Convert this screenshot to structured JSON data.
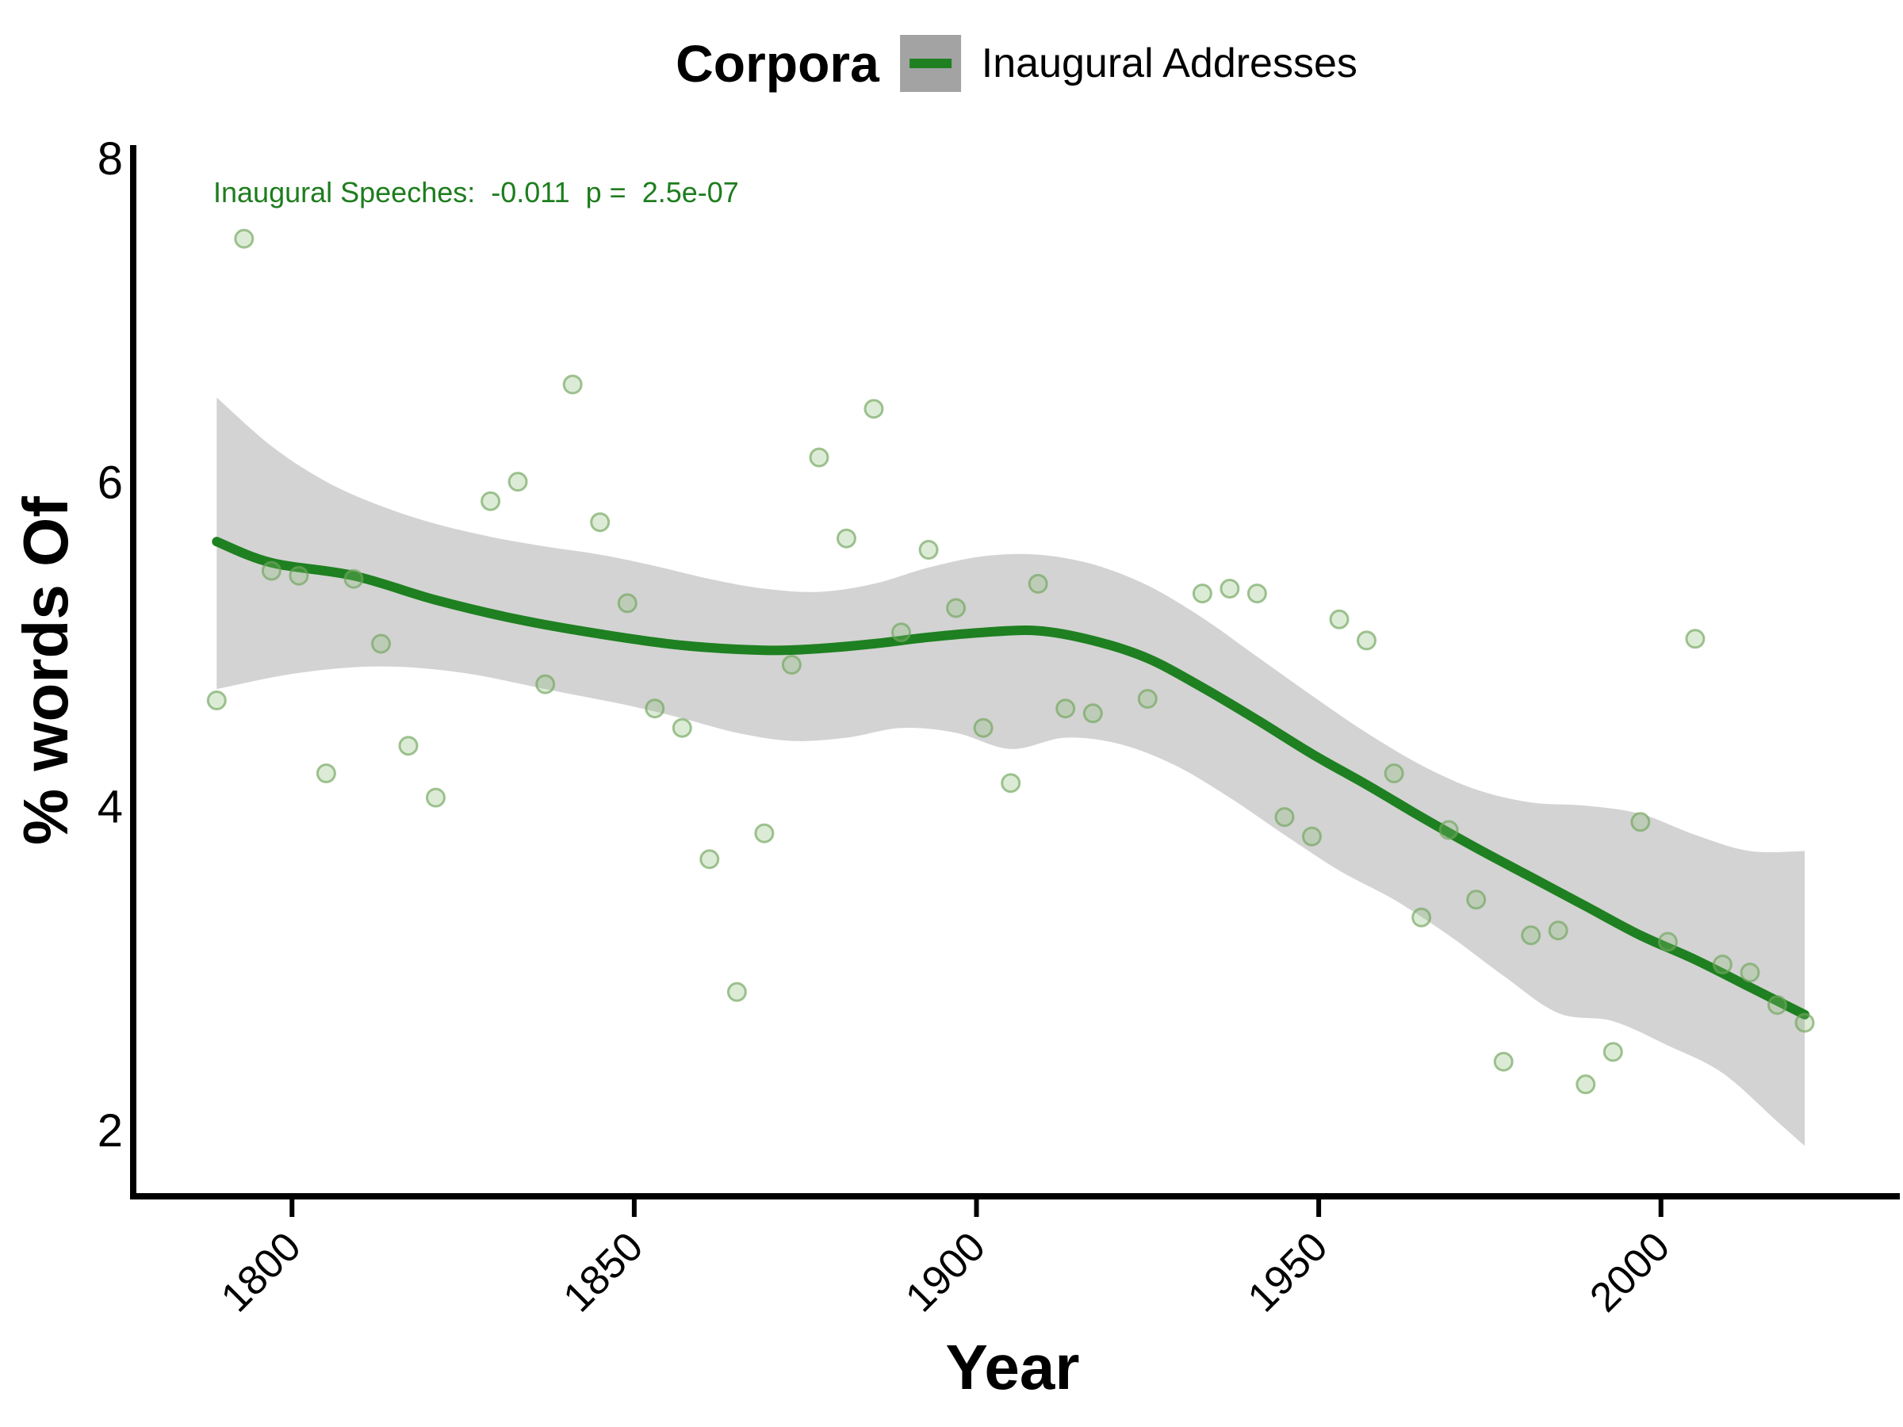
{
  "page": {
    "background": "#ffffff"
  },
  "chart_data": {
    "type": "scatter",
    "legend_title": "Corpora",
    "legend_entries": [
      {
        "label": "Inaugural Addresses"
      }
    ],
    "annotation": "Inaugural Speeches:  -0.011  p =  2.5e-07",
    "xlabel": "Year",
    "ylabel": "% words Of",
    "x_ticks": [
      1800,
      1850,
      1900,
      1950,
      2000
    ],
    "y_ticks": [
      2,
      4,
      6,
      8
    ],
    "xlim": [
      1776.8,
      2034.9
    ],
    "ylim": [
      1.589,
      8.078
    ],
    "grid": "off",
    "legend_position": "top-center",
    "series": [
      {
        "name": "Inaugural Addresses",
        "points": [
          [
            1789,
            4.65
          ],
          [
            1793,
            7.5
          ],
          [
            1797,
            5.45
          ],
          [
            1801,
            5.42
          ],
          [
            1805,
            4.2
          ],
          [
            1809,
            5.4
          ],
          [
            1813,
            5.0
          ],
          [
            1817,
            4.37
          ],
          [
            1821,
            4.05
          ],
          [
            1829,
            5.88
          ],
          [
            1833,
            6.0
          ],
          [
            1837,
            4.75
          ],
          [
            1841,
            6.6
          ],
          [
            1845,
            5.75
          ],
          [
            1849,
            5.25
          ],
          [
            1853,
            4.6
          ],
          [
            1857,
            4.48
          ],
          [
            1861,
            3.67
          ],
          [
            1865,
            2.85
          ],
          [
            1869,
            3.83
          ],
          [
            1873,
            4.87
          ],
          [
            1877,
            6.15
          ],
          [
            1881,
            5.65
          ],
          [
            1885,
            6.45
          ],
          [
            1889,
            5.07
          ],
          [
            1893,
            5.58
          ],
          [
            1897,
            5.22
          ],
          [
            1901,
            4.48
          ],
          [
            1905,
            4.14
          ],
          [
            1909,
            5.37
          ],
          [
            1913,
            4.6
          ],
          [
            1917,
            4.57
          ],
          [
            1925,
            4.66
          ],
          [
            1933,
            5.31
          ],
          [
            1937,
            5.34
          ],
          [
            1941,
            5.31
          ],
          [
            1945,
            3.93
          ],
          [
            1949,
            3.81
          ],
          [
            1953,
            5.15
          ],
          [
            1957,
            5.02
          ],
          [
            1961,
            4.2
          ],
          [
            1965,
            3.31
          ],
          [
            1969,
            3.85
          ],
          [
            1973,
            3.42
          ],
          [
            1977,
            2.42
          ],
          [
            1981,
            3.2
          ],
          [
            1985,
            3.23
          ],
          [
            1989,
            2.28
          ],
          [
            1993,
            2.48
          ],
          [
            1997,
            3.9
          ],
          [
            2001,
            3.16
          ],
          [
            2005,
            5.03
          ],
          [
            2009,
            3.02
          ],
          [
            2013,
            2.97
          ],
          [
            2017,
            2.77
          ],
          [
            2021,
            2.66
          ]
        ],
        "smooth_line": [
          [
            1789,
            5.63
          ],
          [
            1797,
            5.5
          ],
          [
            1809,
            5.42
          ],
          [
            1821,
            5.27
          ],
          [
            1833,
            5.15
          ],
          [
            1845,
            5.06
          ],
          [
            1857,
            4.99
          ],
          [
            1869,
            4.96
          ],
          [
            1877,
            4.97
          ],
          [
            1885,
            5.0
          ],
          [
            1893,
            5.04
          ],
          [
            1901,
            5.07
          ],
          [
            1909,
            5.08
          ],
          [
            1917,
            5.02
          ],
          [
            1925,
            4.91
          ],
          [
            1933,
            4.73
          ],
          [
            1941,
            4.53
          ],
          [
            1949,
            4.32
          ],
          [
            1957,
            4.13
          ],
          [
            1965,
            3.93
          ],
          [
            1973,
            3.74
          ],
          [
            1981,
            3.56
          ],
          [
            1989,
            3.38
          ],
          [
            1997,
            3.2
          ],
          [
            2005,
            3.05
          ],
          [
            2013,
            2.88
          ],
          [
            2021,
            2.71
          ]
        ],
        "ci_upper": [
          [
            1789,
            6.52
          ],
          [
            1797,
            6.22
          ],
          [
            1805,
            6.0
          ],
          [
            1813,
            5.85
          ],
          [
            1821,
            5.74
          ],
          [
            1829,
            5.66
          ],
          [
            1837,
            5.6
          ],
          [
            1845,
            5.55
          ],
          [
            1853,
            5.48
          ],
          [
            1861,
            5.4
          ],
          [
            1869,
            5.34
          ],
          [
            1877,
            5.32
          ],
          [
            1885,
            5.37
          ],
          [
            1893,
            5.47
          ],
          [
            1901,
            5.54
          ],
          [
            1909,
            5.55
          ],
          [
            1917,
            5.49
          ],
          [
            1925,
            5.36
          ],
          [
            1933,
            5.16
          ],
          [
            1941,
            4.92
          ],
          [
            1949,
            4.68
          ],
          [
            1957,
            4.45
          ],
          [
            1965,
            4.25
          ],
          [
            1973,
            4.1
          ],
          [
            1981,
            4.02
          ],
          [
            1989,
            4.0
          ],
          [
            1997,
            3.95
          ],
          [
            2005,
            3.82
          ],
          [
            2013,
            3.72
          ],
          [
            2021,
            3.72
          ]
        ],
        "ci_lower": [
          [
            1789,
            4.72
          ],
          [
            1801,
            4.82
          ],
          [
            1813,
            4.86
          ],
          [
            1825,
            4.82
          ],
          [
            1837,
            4.72
          ],
          [
            1849,
            4.62
          ],
          [
            1857,
            4.54
          ],
          [
            1865,
            4.45
          ],
          [
            1873,
            4.4
          ],
          [
            1881,
            4.42
          ],
          [
            1889,
            4.48
          ],
          [
            1897,
            4.45
          ],
          [
            1905,
            4.35
          ],
          [
            1913,
            4.42
          ],
          [
            1921,
            4.38
          ],
          [
            1929,
            4.25
          ],
          [
            1937,
            4.05
          ],
          [
            1945,
            3.82
          ],
          [
            1953,
            3.6
          ],
          [
            1961,
            3.42
          ],
          [
            1969,
            3.2
          ],
          [
            1977,
            2.95
          ],
          [
            1985,
            2.72
          ],
          [
            1993,
            2.67
          ],
          [
            2001,
            2.52
          ],
          [
            2009,
            2.35
          ],
          [
            2017,
            2.05
          ],
          [
            2021,
            1.9
          ]
        ]
      }
    ],
    "colors": {
      "trend_line": "#1e8020",
      "ci_band": "#d3d3d3",
      "point_fill": "rgba(140,190,120,0.30)",
      "point_stroke": "rgba(110,165,90,0.65)",
      "annotation_text": "#1e7d1e",
      "axis": "#000000",
      "legend_key_fill": "#a3a3a3"
    }
  }
}
